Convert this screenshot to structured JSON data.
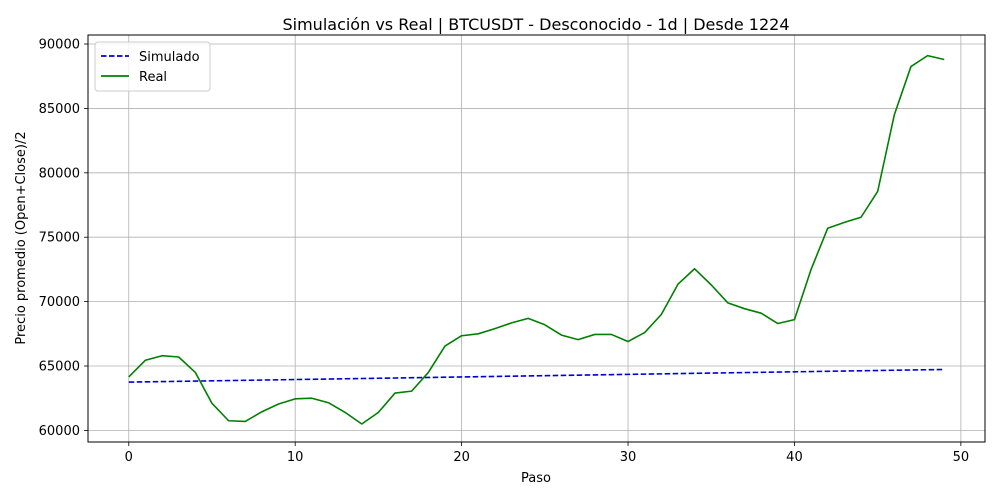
{
  "chart_data": {
    "type": "line",
    "title": "Simulación vs Real | BTCUSDT - Desconocido - 1d | Desde 1224",
    "xlabel": "Paso",
    "ylabel": "Precio promedio (Open+Close)/2",
    "xlim": [
      -2.45,
      51.45
    ],
    "ylim": [
      59100,
      90700
    ],
    "xticks": [
      0,
      10,
      20,
      30,
      40,
      50
    ],
    "yticks": [
      60000,
      65000,
      70000,
      75000,
      80000,
      85000,
      90000
    ],
    "grid": true,
    "legend_position": "top-left",
    "x": [
      0,
      1,
      2,
      3,
      4,
      5,
      6,
      7,
      8,
      9,
      10,
      11,
      12,
      13,
      14,
      15,
      16,
      17,
      18,
      19,
      20,
      21,
      22,
      23,
      24,
      25,
      26,
      27,
      28,
      29,
      30,
      31,
      32,
      33,
      34,
      35,
      36,
      37,
      38,
      39,
      40,
      41,
      42,
      43,
      44,
      45,
      46,
      47,
      48,
      49
    ],
    "series": [
      {
        "name": "Simulado",
        "color": "#0000cc",
        "style": "dashed",
        "values": [
          63750,
          63770,
          63790,
          63810,
          63830,
          63850,
          63870,
          63890,
          63910,
          63930,
          63950,
          63970,
          63990,
          64010,
          64030,
          64050,
          64070,
          64090,
          64110,
          64130,
          64150,
          64170,
          64190,
          64210,
          64230,
          64250,
          64270,
          64290,
          64310,
          64330,
          64350,
          64370,
          64390,
          64410,
          64430,
          64450,
          64470,
          64490,
          64510,
          64530,
          64550,
          64570,
          64590,
          64610,
          64630,
          64650,
          64670,
          64690,
          64710,
          64730
        ]
      },
      {
        "name": "Real",
        "color": "#008000",
        "style": "solid",
        "values": [
          64150,
          65450,
          65800,
          65700,
          64500,
          62100,
          60750,
          60700,
          61450,
          62050,
          62450,
          62500,
          62150,
          61400,
          60500,
          61400,
          62900,
          63050,
          64500,
          66550,
          67350,
          67500,
          67900,
          68350,
          68700,
          68200,
          67400,
          67050,
          67450,
          67450,
          66900,
          67600,
          69000,
          71350,
          72550,
          71300,
          69900,
          69450,
          69100,
          68300,
          68600,
          72500,
          75700,
          76150,
          76550,
          78550,
          84500,
          88250,
          89100,
          88800
        ]
      }
    ]
  }
}
